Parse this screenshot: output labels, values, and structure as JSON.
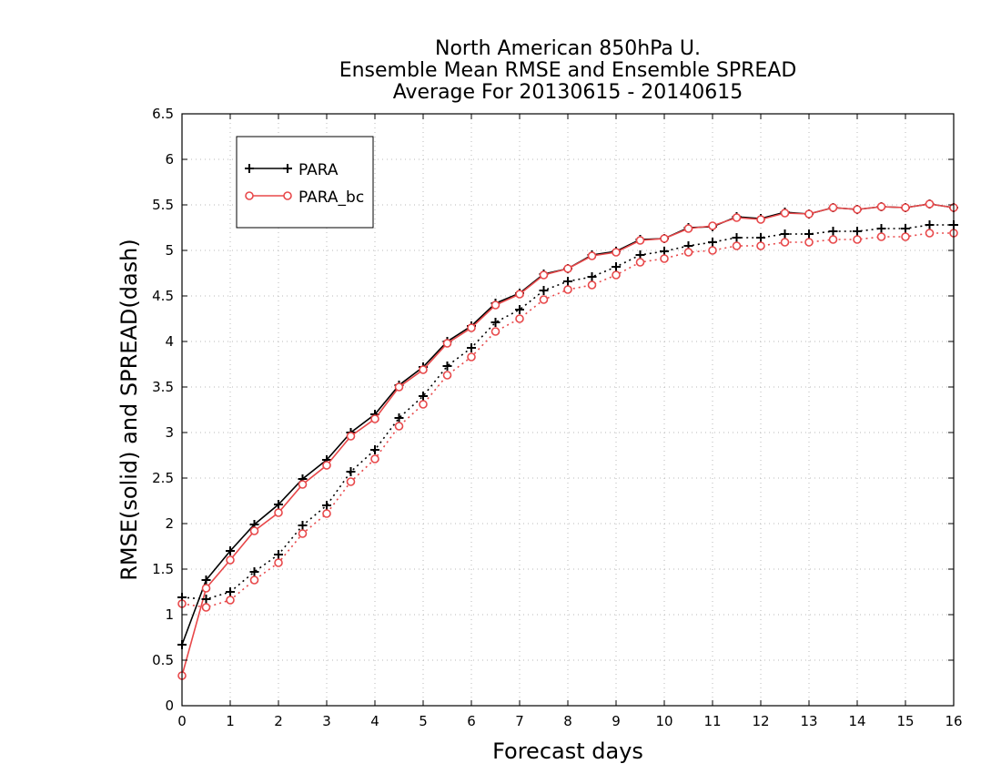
{
  "chart_data": {
    "type": "line",
    "title": [
      "North American 850hPa U.",
      "Ensemble Mean RMSE and Ensemble SPREAD",
      "Average For 20130615 - 20140615"
    ],
    "xlabel": "Forecast days",
    "ylabel": "RMSE(solid) and SPREAD(dash)",
    "xlim": [
      0,
      16
    ],
    "ylim": [
      0,
      6.5
    ],
    "x_ticks": [
      0,
      1,
      2,
      3,
      4,
      5,
      6,
      7,
      8,
      9,
      10,
      11,
      12,
      13,
      14,
      15,
      16
    ],
    "y_ticks": [
      0,
      0.5,
      1,
      1.5,
      2,
      2.5,
      3,
      3.5,
      4,
      4.5,
      5,
      5.5,
      6,
      6.5
    ],
    "x_tick_labels": [
      "0",
      "1",
      "2",
      "3",
      "4",
      "5",
      "6",
      "7",
      "8",
      "9",
      "10",
      "11",
      "12",
      "13",
      "14",
      "15",
      "16"
    ],
    "y_tick_labels": [
      "0",
      "0.5",
      "1",
      "1.5",
      "2",
      "2.5",
      "3",
      "3.5",
      "4",
      "4.5",
      "5",
      "5.5",
      "6",
      "6.5"
    ],
    "grid": true,
    "legend_position": "top-left",
    "legend_entries": [
      "PARA",
      "PARA_bc"
    ],
    "x": [
      0,
      0.5,
      1,
      1.5,
      2,
      2.5,
      3,
      3.5,
      4,
      4.5,
      5,
      5.5,
      6,
      6.5,
      7,
      7.5,
      8,
      8.5,
      9,
      9.5,
      10,
      10.5,
      11,
      11.5,
      12,
      12.5,
      13,
      13.5,
      14,
      14.5,
      15,
      15.5,
      16
    ],
    "series": [
      {
        "name": "PARA",
        "metric": "RMSE",
        "style": "solid",
        "marker": "plus",
        "color": "#000000",
        "values": [
          0.67,
          1.38,
          1.7,
          1.99,
          2.21,
          2.49,
          2.7,
          3.0,
          3.2,
          3.52,
          3.72,
          4.0,
          4.17,
          4.42,
          4.53,
          4.74,
          4.8,
          4.95,
          4.99,
          5.12,
          5.13,
          5.25,
          5.26,
          5.37,
          5.35,
          5.42,
          5.4,
          5.47,
          5.45,
          5.48,
          5.47,
          5.51,
          5.47
        ]
      },
      {
        "name": "PARA_bc",
        "metric": "RMSE",
        "style": "solid",
        "marker": "circle",
        "color": "#e8484a",
        "values": [
          0.33,
          1.29,
          1.6,
          1.92,
          2.12,
          2.43,
          2.64,
          2.96,
          3.15,
          3.5,
          3.69,
          3.98,
          4.15,
          4.4,
          4.52,
          4.73,
          4.8,
          4.94,
          4.98,
          5.11,
          5.13,
          5.24,
          5.27,
          5.36,
          5.34,
          5.41,
          5.4,
          5.47,
          5.45,
          5.48,
          5.47,
          5.51,
          5.47
        ]
      },
      {
        "name": "PARA",
        "metric": "SPREAD",
        "style": "dash",
        "marker": "plus",
        "color": "#000000",
        "values": [
          1.19,
          1.17,
          1.25,
          1.47,
          1.66,
          1.98,
          2.2,
          2.57,
          2.81,
          3.16,
          3.4,
          3.73,
          3.93,
          4.21,
          4.35,
          4.56,
          4.66,
          4.71,
          4.82,
          4.95,
          4.99,
          5.05,
          5.09,
          5.14,
          5.14,
          5.18,
          5.18,
          5.21,
          5.21,
          5.24,
          5.24,
          5.28,
          5.28
        ]
      },
      {
        "name": "PARA_bc",
        "metric": "SPREAD",
        "style": "dash",
        "marker": "circle",
        "color": "#e8484a",
        "values": [
          1.12,
          1.08,
          1.16,
          1.38,
          1.57,
          1.89,
          2.11,
          2.46,
          2.71,
          3.07,
          3.31,
          3.63,
          3.83,
          4.11,
          4.25,
          4.46,
          4.57,
          4.62,
          4.73,
          4.87,
          4.91,
          4.98,
          5.0,
          5.05,
          5.05,
          5.09,
          5.09,
          5.12,
          5.12,
          5.15,
          5.15,
          5.19,
          5.19
        ]
      }
    ]
  }
}
